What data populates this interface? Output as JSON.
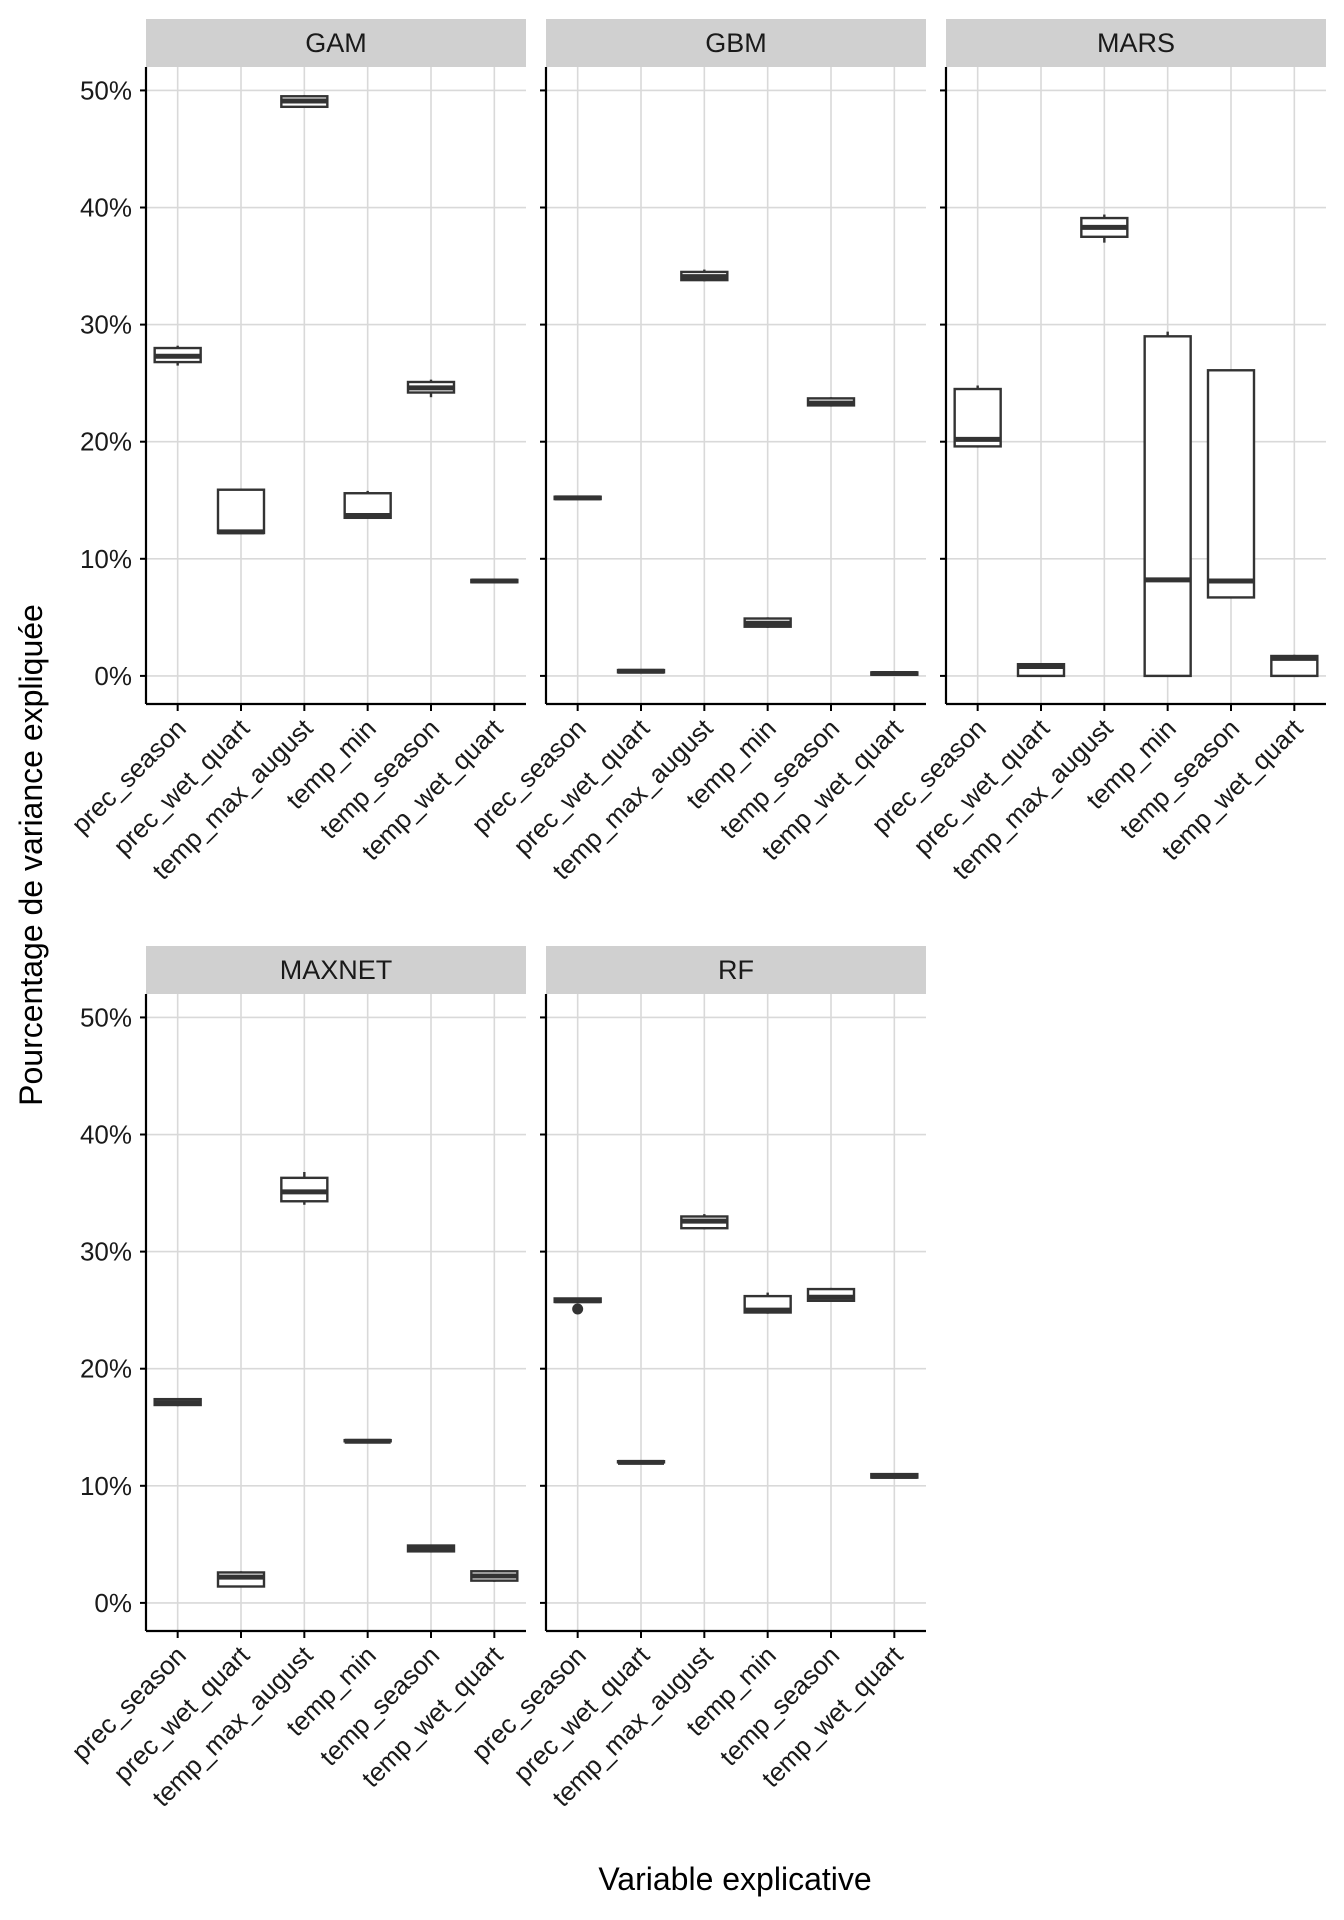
{
  "chart_data": {
    "type": "boxplot",
    "xlabel": "Variable explicative",
    "ylabel": "Pourcentage de variance expliquée",
    "ylim": [
      -2.4,
      52
    ],
    "y_ticks": [
      {
        "value": 0,
        "label": "0%"
      },
      {
        "value": 10,
        "label": "10%"
      },
      {
        "value": 20,
        "label": "20%"
      },
      {
        "value": 30,
        "label": "30%"
      },
      {
        "value": 40,
        "label": "40%"
      },
      {
        "value": 50,
        "label": "50%"
      }
    ],
    "categories": [
      "prec_season",
      "prec_wet_quart",
      "temp_max_august",
      "temp_min",
      "temp_season",
      "temp_wet_quart"
    ],
    "panels": [
      {
        "title": "GAM",
        "boxes": [
          {
            "min": 26.5,
            "q1": 26.8,
            "median": 27.3,
            "q3": 28.0,
            "max": 28.2
          },
          {
            "min": 12.2,
            "q1": 12.2,
            "median": 12.3,
            "q3": 15.9,
            "max": 16.0
          },
          {
            "min": 48.6,
            "q1": 48.6,
            "median": 49.1,
            "q3": 49.5,
            "max": 49.6
          },
          {
            "min": 13.5,
            "q1": 13.5,
            "median": 13.7,
            "q3": 15.6,
            "max": 15.8
          },
          {
            "min": 23.8,
            "q1": 24.2,
            "median": 24.6,
            "q3": 25.1,
            "max": 25.3
          },
          {
            "min": 8.0,
            "q1": 8.0,
            "median": 8.1,
            "q3": 8.2,
            "max": 8.2
          }
        ]
      },
      {
        "title": "GBM",
        "boxes": [
          {
            "min": 15.1,
            "q1": 15.1,
            "median": 15.2,
            "q3": 15.3,
            "max": 15.3
          },
          {
            "min": 0.3,
            "q1": 0.3,
            "median": 0.4,
            "q3": 0.5,
            "max": 0.5
          },
          {
            "min": 33.7,
            "q1": 33.8,
            "median": 34.1,
            "q3": 34.5,
            "max": 34.7
          },
          {
            "min": 4.1,
            "q1": 4.2,
            "median": 4.5,
            "q3": 4.9,
            "max": 5.0
          },
          {
            "min": 23.0,
            "q1": 23.1,
            "median": 23.3,
            "q3": 23.7,
            "max": 23.8
          },
          {
            "min": 0.1,
            "q1": 0.1,
            "median": 0.2,
            "q3": 0.3,
            "max": 0.3
          }
        ]
      },
      {
        "title": "MARS",
        "boxes": [
          {
            "min": 19.5,
            "q1": 19.6,
            "median": 20.2,
            "q3": 24.5,
            "max": 24.8
          },
          {
            "min": 0.0,
            "q1": 0.0,
            "median": 0.8,
            "q3": 1.0,
            "max": 1.1
          },
          {
            "min": 37.0,
            "q1": 37.5,
            "median": 38.3,
            "q3": 39.1,
            "max": 39.4
          },
          {
            "min": 0.0,
            "q1": 0.0,
            "median": 8.2,
            "q3": 29.0,
            "max": 29.4
          },
          {
            "min": 6.7,
            "q1": 6.7,
            "median": 8.1,
            "q3": 26.1,
            "max": 26.1
          },
          {
            "min": 0.0,
            "q1": 0.0,
            "median": 1.5,
            "q3": 1.7,
            "max": 1.8
          }
        ]
      },
      {
        "title": "MAXNET",
        "boxes": [
          {
            "min": 16.8,
            "q1": 16.9,
            "median": 17.1,
            "q3": 17.4,
            "max": 17.4
          },
          {
            "min": 1.4,
            "q1": 1.4,
            "median": 2.2,
            "q3": 2.6,
            "max": 2.7
          },
          {
            "min": 34.0,
            "q1": 34.3,
            "median": 35.1,
            "q3": 36.3,
            "max": 36.8
          },
          {
            "min": 13.8,
            "q1": 13.8,
            "median": 13.8,
            "q3": 13.9,
            "max": 13.9
          },
          {
            "min": 4.3,
            "q1": 4.4,
            "median": 4.6,
            "q3": 4.9,
            "max": 4.9
          },
          {
            "min": 1.8,
            "q1": 1.9,
            "median": 2.3,
            "q3": 2.7,
            "max": 2.8
          }
        ]
      },
      {
        "title": "RF",
        "boxes": [
          {
            "min": 25.7,
            "q1": 25.7,
            "median": 25.8,
            "q3": 26.0,
            "max": 26.0,
            "outliers": [
              25.1
            ]
          },
          {
            "min": 12.0,
            "q1": 12.0,
            "median": 12.0,
            "q3": 12.1,
            "max": 12.1
          },
          {
            "min": 31.9,
            "q1": 32.0,
            "median": 32.6,
            "q3": 33.0,
            "max": 33.2
          },
          {
            "min": 24.7,
            "q1": 24.8,
            "median": 25.0,
            "q3": 26.2,
            "max": 26.5
          },
          {
            "min": 25.7,
            "q1": 25.8,
            "median": 26.1,
            "q3": 26.8,
            "max": 26.9
          },
          {
            "min": 10.7,
            "q1": 10.7,
            "median": 10.8,
            "q3": 11.0,
            "max": 11.0
          }
        ]
      }
    ]
  }
}
